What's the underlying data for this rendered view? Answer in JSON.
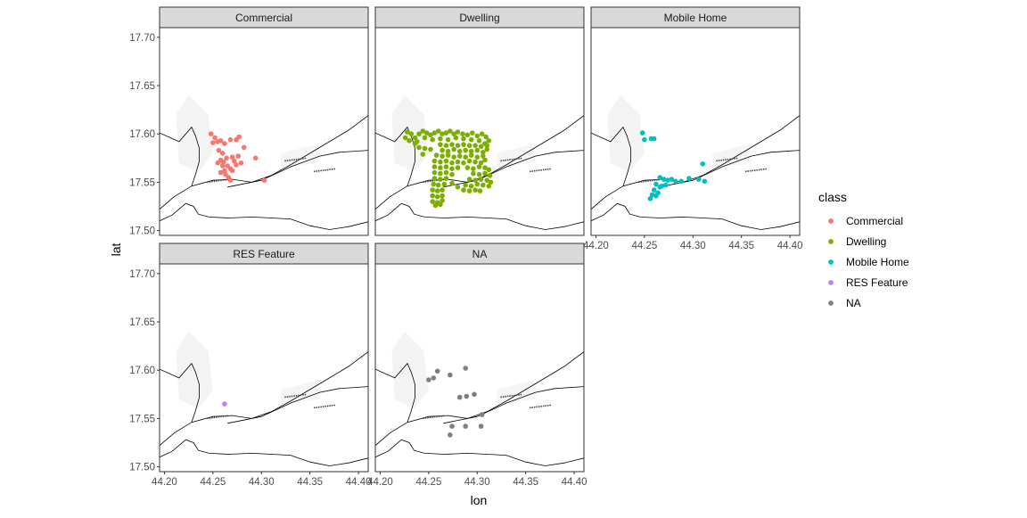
{
  "chart_data": {
    "type": "scatter",
    "subtype": "faceted map scatter",
    "xlabel": "lon",
    "ylabel": "lat",
    "xlim": [
      44.195,
      44.41
    ],
    "ylim": [
      17.495,
      17.71
    ],
    "x_ticks": [
      "44.20",
      "44.25",
      "44.30",
      "44.35",
      "44.40"
    ],
    "x_tick_values": [
      44.2,
      44.25,
      44.3,
      44.35,
      44.4
    ],
    "y_ticks": [
      "17.50",
      "17.55",
      "17.60",
      "17.65",
      "17.70"
    ],
    "y_tick_values": [
      17.5,
      17.55,
      17.6,
      17.65,
      17.7
    ],
    "legend": {
      "title": "class",
      "position": "right",
      "entries": [
        {
          "label": "Commercial",
          "color": "#F8766D"
        },
        {
          "label": "Dwelling",
          "color": "#7CAE00"
        },
        {
          "label": "Mobile Home",
          "color": "#00BFC4"
        },
        {
          "label": "RES Feature",
          "color": "#C77CFF"
        },
        {
          "label": "NA",
          "color": "#7F7F7F"
        }
      ]
    },
    "basemap": {
      "line_color": "#000000",
      "lines": [
        [
          [
            44.195,
            17.601
          ],
          [
            44.215,
            17.592
          ],
          [
            44.222,
            17.6
          ],
          [
            44.228,
            17.607
          ],
          [
            44.232,
            17.598
          ],
          [
            44.236,
            17.585
          ],
          [
            44.236,
            17.572
          ],
          [
            44.232,
            17.558
          ],
          [
            44.228,
            17.546
          ]
        ],
        [
          [
            44.195,
            17.522
          ],
          [
            44.21,
            17.535
          ],
          [
            44.228,
            17.546
          ],
          [
            44.25,
            17.552
          ],
          [
            44.27,
            17.553
          ],
          [
            44.29,
            17.55
          ],
          [
            44.31,
            17.557
          ],
          [
            44.33,
            17.568
          ],
          [
            44.35,
            17.58
          ],
          [
            44.37,
            17.592
          ],
          [
            44.39,
            17.604
          ],
          [
            44.41,
            17.619
          ]
        ],
        [
          [
            44.265,
            17.545
          ],
          [
            44.3,
            17.552
          ],
          [
            44.33,
            17.566
          ],
          [
            44.36,
            17.577
          ],
          [
            44.38,
            17.581
          ],
          [
            44.41,
            17.583
          ]
        ],
        [
          [
            44.195,
            17.51
          ],
          [
            44.208,
            17.516
          ],
          [
            44.222,
            17.528
          ],
          [
            44.23,
            17.525
          ],
          [
            44.235,
            17.517
          ],
          [
            44.246,
            17.514
          ],
          [
            44.266,
            17.513
          ],
          [
            44.29,
            17.514
          ],
          [
            44.31,
            17.513
          ],
          [
            44.33,
            17.512
          ],
          [
            44.35,
            17.505
          ],
          [
            44.37,
            17.501
          ],
          [
            44.39,
            17.504
          ],
          [
            44.41,
            17.509
          ]
        ]
      ]
    },
    "facets": [
      {
        "name": "Commercial",
        "color": "#F8766D",
        "points": [
          [
            44.248,
            17.6
          ],
          [
            44.252,
            17.596
          ],
          [
            44.255,
            17.592
          ],
          [
            44.25,
            17.591
          ],
          [
            44.258,
            17.593
          ],
          [
            44.262,
            17.59
          ],
          [
            44.268,
            17.594
          ],
          [
            44.274,
            17.594
          ],
          [
            44.277,
            17.597
          ],
          [
            44.282,
            17.586
          ],
          [
            44.256,
            17.583
          ],
          [
            44.26,
            17.58
          ],
          [
            44.264,
            17.575
          ],
          [
            44.258,
            17.573
          ],
          [
            44.255,
            17.57
          ],
          [
            44.26,
            17.567
          ],
          [
            44.265,
            17.567
          ],
          [
            44.262,
            17.562
          ],
          [
            44.258,
            17.56
          ],
          [
            44.263,
            17.558
          ],
          [
            44.268,
            17.564
          ],
          [
            44.272,
            17.572
          ],
          [
            44.276,
            17.577
          ],
          [
            44.274,
            17.568
          ],
          [
            44.279,
            17.57
          ],
          [
            44.27,
            17.562
          ],
          [
            44.266,
            17.555
          ],
          [
            44.268,
            17.552
          ],
          [
            44.294,
            17.575
          ],
          [
            44.303,
            17.552
          ],
          [
            44.261,
            17.571
          ],
          [
            44.27,
            17.576
          ]
        ]
      },
      {
        "name": "Dwelling",
        "color": "#7CAE00",
        "points": [
          [
            44.228,
            17.602
          ],
          [
            44.232,
            17.6
          ],
          [
            44.236,
            17.596
          ],
          [
            44.24,
            17.6
          ],
          [
            44.244,
            17.603
          ],
          [
            44.248,
            17.601
          ],
          [
            44.252,
            17.599
          ],
          [
            44.256,
            17.601
          ],
          [
            44.26,
            17.603
          ],
          [
            44.264,
            17.6
          ],
          [
            44.268,
            17.601
          ],
          [
            44.272,
            17.603
          ],
          [
            44.276,
            17.6
          ],
          [
            44.28,
            17.602
          ],
          [
            44.285,
            17.6
          ],
          [
            44.29,
            17.599
          ],
          [
            44.295,
            17.601
          ],
          [
            44.3,
            17.598
          ],
          [
            44.305,
            17.6
          ],
          [
            44.309,
            17.597
          ],
          [
            44.312,
            17.593
          ],
          [
            44.226,
            17.596
          ],
          [
            44.23,
            17.593
          ],
          [
            44.238,
            17.592
          ],
          [
            44.246,
            17.596
          ],
          [
            44.254,
            17.594
          ],
          [
            44.262,
            17.595
          ],
          [
            44.27,
            17.594
          ],
          [
            44.278,
            17.596
          ],
          [
            44.286,
            17.595
          ],
          [
            44.294,
            17.594
          ],
          [
            44.302,
            17.593
          ],
          [
            44.308,
            17.59
          ],
          [
            44.262,
            17.589
          ],
          [
            44.268,
            17.588
          ],
          [
            44.274,
            17.589
          ],
          [
            44.28,
            17.588
          ],
          [
            44.286,
            17.589
          ],
          [
            44.292,
            17.588
          ],
          [
            44.298,
            17.588
          ],
          [
            44.304,
            17.587
          ],
          [
            44.31,
            17.588
          ],
          [
            44.264,
            17.583
          ],
          [
            44.27,
            17.582
          ],
          [
            44.276,
            17.584
          ],
          [
            44.282,
            17.582
          ],
          [
            44.288,
            17.583
          ],
          [
            44.294,
            17.582
          ],
          [
            44.3,
            17.583
          ],
          [
            44.306,
            17.581
          ],
          [
            44.31,
            17.584
          ],
          [
            44.258,
            17.578
          ],
          [
            44.264,
            17.577
          ],
          [
            44.27,
            17.578
          ],
          [
            44.276,
            17.576
          ],
          [
            44.282,
            17.577
          ],
          [
            44.288,
            17.576
          ],
          [
            44.294,
            17.578
          ],
          [
            44.3,
            17.576
          ],
          [
            44.306,
            17.577
          ],
          [
            44.256,
            17.572
          ],
          [
            44.262,
            17.571
          ],
          [
            44.268,
            17.572
          ],
          [
            44.274,
            17.57
          ],
          [
            44.28,
            17.571
          ],
          [
            44.286,
            17.57
          ],
          [
            44.292,
            17.572
          ],
          [
            44.298,
            17.571
          ],
          [
            44.304,
            17.57
          ],
          [
            44.308,
            17.573
          ],
          [
            44.256,
            17.566
          ],
          [
            44.262,
            17.565
          ],
          [
            44.268,
            17.566
          ],
          [
            44.274,
            17.564
          ],
          [
            44.28,
            17.565
          ],
          [
            44.29,
            17.565
          ],
          [
            44.296,
            17.564
          ],
          [
            44.302,
            17.566
          ],
          [
            44.308,
            17.565
          ],
          [
            44.312,
            17.563
          ],
          [
            44.256,
            17.56
          ],
          [
            44.262,
            17.559
          ],
          [
            44.268,
            17.56
          ],
          [
            44.274,
            17.558
          ],
          [
            44.296,
            17.559
          ],
          [
            44.302,
            17.558
          ],
          [
            44.308,
            17.559
          ],
          [
            44.313,
            17.557
          ],
          [
            44.256,
            17.554
          ],
          [
            44.262,
            17.553
          ],
          [
            44.268,
            17.554
          ],
          [
            44.292,
            17.553
          ],
          [
            44.298,
            17.552
          ],
          [
            44.304,
            17.553
          ],
          [
            44.31,
            17.552
          ],
          [
            44.314,
            17.55
          ],
          [
            44.255,
            17.548
          ],
          [
            44.26,
            17.547
          ],
          [
            44.266,
            17.548
          ],
          [
            44.288,
            17.547
          ],
          [
            44.294,
            17.546
          ],
          [
            44.3,
            17.548
          ],
          [
            44.306,
            17.547
          ],
          [
            44.312,
            17.546
          ],
          [
            44.254,
            17.542
          ],
          [
            44.259,
            17.541
          ],
          [
            44.264,
            17.542
          ],
          [
            44.286,
            17.542
          ],
          [
            44.292,
            17.541
          ],
          [
            44.298,
            17.542
          ],
          [
            44.303,
            17.541
          ],
          [
            44.254,
            17.536
          ],
          [
            44.259,
            17.535
          ],
          [
            44.264,
            17.536
          ],
          [
            44.254,
            17.53
          ],
          [
            44.259,
            17.529
          ],
          [
            44.264,
            17.531
          ],
          [
            44.257,
            17.526
          ],
          [
            44.262,
            17.527
          ],
          [
            44.24,
            17.586
          ],
          [
            44.246,
            17.585
          ],
          [
            44.252,
            17.584
          ],
          [
            44.244,
            17.579
          ],
          [
            44.236,
            17.59
          ],
          [
            44.274,
            17.549
          ],
          [
            44.28,
            17.545
          ]
        ]
      },
      {
        "name": "Mobile Home",
        "color": "#00BFC4",
        "points": [
          [
            44.248,
            17.601
          ],
          [
            44.25,
            17.594
          ],
          [
            44.257,
            17.595
          ],
          [
            44.26,
            17.595
          ],
          [
            44.266,
            17.555
          ],
          [
            44.27,
            17.553
          ],
          [
            44.274,
            17.552
          ],
          [
            44.278,
            17.553
          ],
          [
            44.282,
            17.551
          ],
          [
            44.288,
            17.551
          ],
          [
            44.296,
            17.554
          ],
          [
            44.306,
            17.553
          ],
          [
            44.312,
            17.551
          ],
          [
            44.31,
            17.569
          ],
          [
            44.262,
            17.548
          ],
          [
            44.266,
            17.545
          ],
          [
            44.26,
            17.542
          ],
          [
            44.264,
            17.539
          ],
          [
            44.258,
            17.537
          ],
          [
            44.256,
            17.533
          ],
          [
            44.262,
            17.536
          ],
          [
            44.268,
            17.546
          ],
          [
            44.272,
            17.547
          ]
        ]
      },
      {
        "name": "RES Feature",
        "color": "#C77CFF",
        "points": [
          [
            44.262,
            17.565
          ]
        ]
      },
      {
        "name": "NA",
        "color": "#7F7F7F",
        "points": [
          [
            44.259,
            17.599
          ],
          [
            44.255,
            17.592
          ],
          [
            44.25,
            17.59
          ],
          [
            44.272,
            17.595
          ],
          [
            44.288,
            17.602
          ],
          [
            44.282,
            17.572
          ],
          [
            44.289,
            17.573
          ],
          [
            44.297,
            17.575
          ],
          [
            44.305,
            17.554
          ],
          [
            44.274,
            17.542
          ],
          [
            44.288,
            17.542
          ],
          [
            44.304,
            17.542
          ],
          [
            44.272,
            17.533
          ]
        ]
      }
    ]
  }
}
